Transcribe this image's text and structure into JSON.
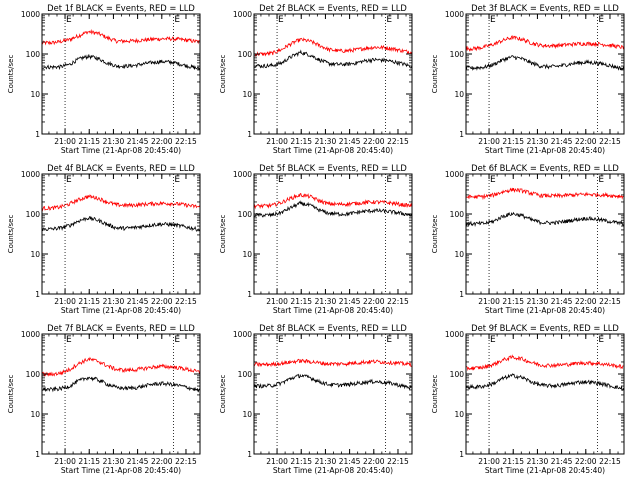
{
  "chart_data": {
    "type": "line",
    "common": {
      "ylabel": "Counts/sec",
      "xlabel": "Start Time (21-Apr-08 20:45:40)",
      "ylim": [
        1,
        1000
      ],
      "yscale": "log",
      "yticks": [
        "1",
        "10",
        "100",
        "1000"
      ],
      "xticks": [
        "21:00",
        "21:15",
        "21:30",
        "21:45",
        "22:00",
        "22:15"
      ],
      "xrange_min": [
        0,
        98
      ],
      "xtick_minutes": [
        14.3,
        29.3,
        44.3,
        59.3,
        74.3,
        89.3
      ],
      "vline_minutes": [
        14.3,
        81.5
      ],
      "marker_labels": [
        "E",
        "E"
      ],
      "series_colors": {
        "events": "#000000",
        "lld": "#ff0000"
      },
      "grid": false
    },
    "panels": [
      {
        "title": "Det 1f BLACK = Events, RED = LLD",
        "series": [
          {
            "key": "lld",
            "values": [
              190,
              190,
              205,
              230,
              290,
              360,
              330,
              255,
              210,
              210,
              215,
              225,
              235,
              240,
              240,
              230,
              215,
              200
            ]
          },
          {
            "key": "events",
            "values": [
              48,
              47,
              48,
              55,
              75,
              88,
              78,
              60,
              50,
              50,
              52,
              57,
              62,
              65,
              62,
              55,
              48,
              42
            ]
          }
        ]
      },
      {
        "title": "Det 2f BLACK = Events, RED = LLD",
        "series": [
          {
            "key": "lld",
            "values": [
              100,
              100,
              105,
              130,
              180,
              230,
              210,
              165,
              130,
              120,
              120,
              128,
              140,
              148,
              145,
              135,
              120,
              110
            ]
          },
          {
            "key": "events",
            "values": [
              52,
              50,
              52,
              60,
              85,
              110,
              95,
              72,
              58,
              55,
              55,
              60,
              68,
              72,
              70,
              64,
              57,
              48
            ]
          }
        ]
      },
      {
        "title": "Det 3f BLACK = Events, RED = LLD",
        "series": [
          {
            "key": "lld",
            "values": [
              135,
              138,
              150,
              175,
              220,
              260,
              235,
              190,
              165,
              160,
              165,
              172,
              180,
              182,
              180,
              172,
              158,
              145
            ]
          },
          {
            "key": "events",
            "values": [
              45,
              45,
              47,
              55,
              72,
              85,
              76,
              60,
              50,
              48,
              50,
              55,
              60,
              62,
              60,
              55,
              48,
              42
            ]
          }
        ]
      },
      {
        "title": "Det 4f BLACK = Events, RED = LLD",
        "series": [
          {
            "key": "lld",
            "values": [
              140,
              140,
              150,
              180,
              230,
              275,
              250,
              200,
              170,
              165,
              168,
              175,
              182,
              185,
              182,
              175,
              160,
              150
            ]
          },
          {
            "key": "events",
            "values": [
              42,
              42,
              45,
              52,
              68,
              80,
              70,
              55,
              45,
              44,
              46,
              50,
              54,
              56,
              54,
              50,
              45,
              40
            ]
          }
        ]
      },
      {
        "title": "Det 5f BLACK = Events, RED = LLD",
        "series": [
          {
            "key": "lld",
            "values": [
              160,
              158,
              165,
              195,
              250,
              300,
              275,
              215,
              180,
              175,
              178,
              185,
              195,
              200,
              195,
              185,
              170,
              160
            ]
          },
          {
            "key": "events",
            "values": [
              95,
              93,
              95,
              110,
              145,
              185,
              165,
              125,
              105,
              100,
              100,
              108,
              118,
              122,
              118,
              112,
              102,
              92
            ]
          }
        ]
      },
      {
        "title": "Det 6f BLACK = Events, RED = LLD",
        "series": [
          {
            "key": "lld",
            "values": [
              270,
              268,
              275,
              300,
              360,
              410,
              385,
              330,
              290,
              285,
              285,
              295,
              305,
              310,
              305,
              298,
              285,
              275
            ]
          },
          {
            "key": "events",
            "values": [
              58,
              57,
              58,
              66,
              88,
              102,
              92,
              72,
              62,
              60,
              62,
              67,
              74,
              78,
              74,
              68,
              62,
              57
            ]
          }
        ]
      },
      {
        "title": "Det 7f BLACK = Events, RED = LLD",
        "series": [
          {
            "key": "lld",
            "values": [
              100,
              98,
              105,
              130,
              185,
              235,
              210,
              160,
              130,
              125,
              128,
              138,
              150,
              155,
              150,
              140,
              125,
              110
            ]
          },
          {
            "key": "events",
            "values": [
              42,
              41,
              43,
              50,
              68,
              82,
              72,
              56,
              46,
              44,
              45,
              50,
              56,
              58,
              55,
              50,
              44,
              38
            ]
          }
        ]
      },
      {
        "title": "Det 8f BLACK = Events, RED = LLD",
        "series": [
          {
            "key": "lld",
            "values": [
              175,
              172,
              175,
              185,
              200,
              215,
              205,
              190,
              180,
              180,
              182,
              190,
              200,
              205,
              200,
              192,
              182,
              172
            ]
          },
          {
            "key": "events",
            "values": [
              50,
              50,
              52,
              60,
              78,
              92,
              82,
              64,
              55,
              53,
              54,
              58,
              63,
              65,
              62,
              57,
              50,
              45
            ]
          }
        ]
      },
      {
        "title": "Det 9f BLACK = Events, RED = LLD",
        "series": [
          {
            "key": "lld",
            "values": [
              140,
              140,
              148,
              175,
              225,
              265,
              240,
              195,
              168,
              165,
              168,
              175,
              185,
              190,
              185,
              175,
              162,
              150
            ]
          },
          {
            "key": "events",
            "values": [
              48,
              47,
              50,
              58,
              78,
              92,
              82,
              64,
              53,
              51,
              52,
              56,
              62,
              64,
              60,
              54,
              48,
              42
            ]
          }
        ]
      }
    ]
  }
}
